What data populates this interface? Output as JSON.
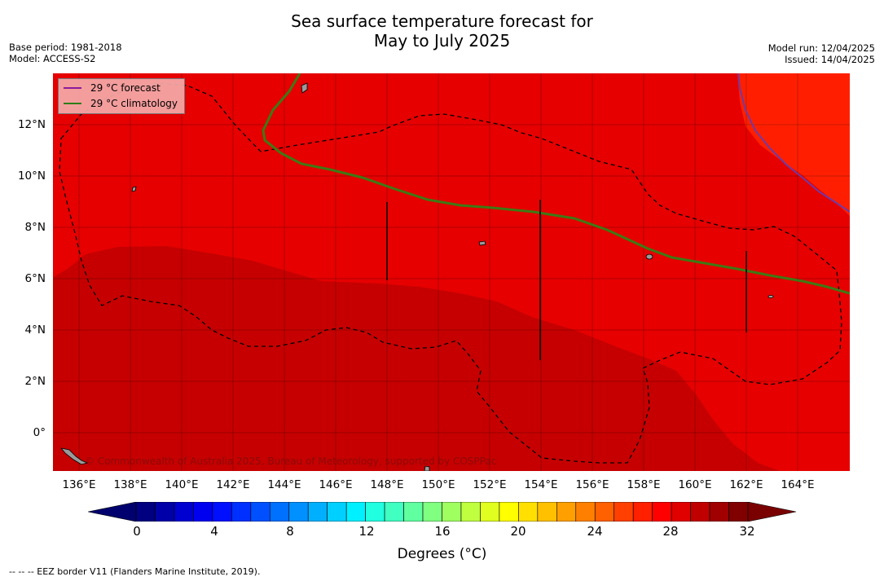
{
  "title_line1": "Sea surface temperature forecast for",
  "title_line2": "May to July 2025",
  "meta_left": [
    "Base period: 1981-2018",
    "Model: ACCESS-S2"
  ],
  "meta_right": [
    "Model run: 12/04/2025",
    "Issued: 14/04/2025"
  ],
  "legend": [
    {
      "label": "29 °C  forecast",
      "color": "#8b1a9c"
    },
    {
      "label": "29 °C  climatology",
      "color": "#2e7d1a"
    }
  ],
  "credit": "© Commonwealth of Australia 2025, Bureau of Meteorology, supported by COSPPac",
  "lat_ticks": [
    "12°N",
    "10°N",
    "8°N",
    "6°N",
    "4°N",
    "2°N",
    "0°"
  ],
  "lon_ticks": [
    "136°E",
    "138°E",
    "140°E",
    "142°E",
    "144°E",
    "146°E",
    "148°E",
    "150°E",
    "152°E",
    "154°E",
    "156°E",
    "158°E",
    "160°E",
    "162°E",
    "164°E"
  ],
  "colorbar": {
    "ticks": [
      "0",
      "4",
      "8",
      "12",
      "16",
      "20",
      "24",
      "28",
      "32"
    ],
    "min": 0,
    "max": 32,
    "step": 1,
    "title": "Degrees (°C)",
    "colors": [
      "#000080",
      "#0000a8",
      "#0000d0",
      "#0000f0",
      "#0010ff",
      "#0030ff",
      "#0050ff",
      "#0070ff",
      "#0090ff",
      "#00b0ff",
      "#00d0ff",
      "#00f0ff",
      "#20ffe0",
      "#40ffc0",
      "#60ffa0",
      "#80ff80",
      "#a0ff60",
      "#c0ff40",
      "#e0ff20",
      "#ffff00",
      "#ffe000",
      "#ffc000",
      "#ffa000",
      "#ff8000",
      "#ff6000",
      "#ff4000",
      "#ff2000",
      "#ff0000",
      "#e00000",
      "#c00000",
      "#a00000",
      "#800000"
    ],
    "under_color": "#00006e",
    "over_color": "#7a0000"
  },
  "map_colors": {
    "c29": "#e60000",
    "c30": "#c60000",
    "c28": "#ff1f00"
  },
  "footer": "--  --  -- EEZ border V11 (Flanders Marine Institute, 2019)."
}
